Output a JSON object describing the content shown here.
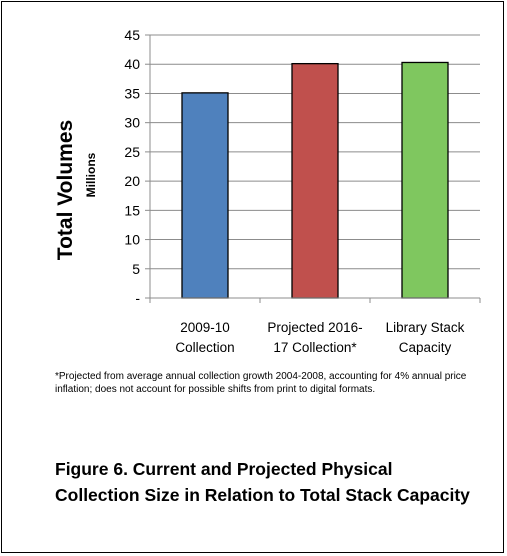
{
  "chart_data": {
    "type": "bar",
    "categories": [
      [
        "2009-10",
        "Collection"
      ],
      [
        "Projected 2016-",
        "17 Collection*"
      ],
      [
        "Library Stack",
        "Capacity"
      ]
    ],
    "values": [
      35.1,
      40.1,
      40.3
    ],
    "colors": [
      "#4f81bd",
      "#c0504d",
      "#7fc75f"
    ],
    "ylabel": "Total Volumes",
    "yunit": "Millions",
    "ylim": [
      0,
      45
    ],
    "yticks": [
      0,
      5,
      10,
      15,
      20,
      25,
      30,
      35,
      40,
      45
    ],
    "ytick_labels": [
      "-",
      "5",
      "10",
      "15",
      "20",
      "25",
      "30",
      "35",
      "40",
      "45"
    ],
    "grid": true,
    "legend": "none"
  },
  "footnote": "*Projected from average annual collection growth  2004-2008, accounting for 4% annual price inflation; does not account for possible shifts from print to digital formats.",
  "caption": "Figure 6.  Current and Projected Physical Collection Size in Relation to Total Stack Capacity"
}
